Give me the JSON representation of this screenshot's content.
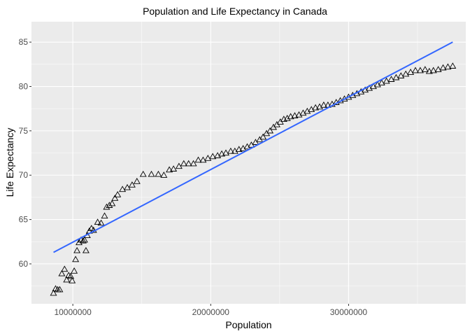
{
  "chart_data": {
    "type": "scatter",
    "title": "Population and Life Expectancy in Canada",
    "xlabel": "Population",
    "ylabel": "Life Expectancy",
    "xlim": [
      7000000,
      38500000
    ],
    "ylim": [
      55.5,
      87.3
    ],
    "x_ticks": [
      10000000,
      20000000,
      30000000
    ],
    "x_tick_labels": [
      "10000000",
      "20000000",
      "30000000"
    ],
    "y_ticks": [
      60,
      65,
      70,
      75,
      80,
      85
    ],
    "y_tick_labels": [
      "60",
      "65",
      "70",
      "75",
      "80",
      "85"
    ],
    "grid": true,
    "marker": "open-triangle",
    "points": [
      [
        8600000,
        56.7
      ],
      [
        8750000,
        57.2
      ],
      [
        8900000,
        57.1
      ],
      [
        9050000,
        57.1
      ],
      [
        9200000,
        58.9
      ],
      [
        9400000,
        59.4
      ],
      [
        9550000,
        58.2
      ],
      [
        9700000,
        58.7
      ],
      [
        9850000,
        58.6
      ],
      [
        9950000,
        58.1
      ],
      [
        10100000,
        59.2
      ],
      [
        10200000,
        60.5
      ],
      [
        10300000,
        61.5
      ],
      [
        10450000,
        62.4
      ],
      [
        10600000,
        62.7
      ],
      [
        10750000,
        62.6
      ],
      [
        10850000,
        62.7
      ],
      [
        10950000,
        61.5
      ],
      [
        11050000,
        63.2
      ],
      [
        11200000,
        63.7
      ],
      [
        11350000,
        64.0
      ],
      [
        11500000,
        63.8
      ],
      [
        11800000,
        64.7
      ],
      [
        12050000,
        64.6
      ],
      [
        12300000,
        65.4
      ],
      [
        12450000,
        66.4
      ],
      [
        12650000,
        66.6
      ],
      [
        12850000,
        66.8
      ],
      [
        13050000,
        67.4
      ],
      [
        13250000,
        67.8
      ],
      [
        13600000,
        68.4
      ],
      [
        13950000,
        68.6
      ],
      [
        14300000,
        68.9
      ],
      [
        14650000,
        69.3
      ],
      [
        15100000,
        70.1
      ],
      [
        15700000,
        70.1
      ],
      [
        16200000,
        70.1
      ],
      [
        16600000,
        70.0
      ],
      [
        17000000,
        70.6
      ],
      [
        17300000,
        70.7
      ],
      [
        17700000,
        71.0
      ],
      [
        18050000,
        71.3
      ],
      [
        18400000,
        71.3
      ],
      [
        18750000,
        71.3
      ],
      [
        19100000,
        71.7
      ],
      [
        19450000,
        71.7
      ],
      [
        19800000,
        71.9
      ],
      [
        20150000,
        72.1
      ],
      [
        20500000,
        72.2
      ],
      [
        20800000,
        72.4
      ],
      [
        21100000,
        72.5
      ],
      [
        21450000,
        72.7
      ],
      [
        21750000,
        72.7
      ],
      [
        22050000,
        72.9
      ],
      [
        22350000,
        73.0
      ],
      [
        22650000,
        73.2
      ],
      [
        22950000,
        73.4
      ],
      [
        23250000,
        73.7
      ],
      [
        23550000,
        74.0
      ],
      [
        23800000,
        74.3
      ],
      [
        24050000,
        74.7
      ],
      [
        24300000,
        75.0
      ],
      [
        24550000,
        75.4
      ],
      [
        24800000,
        75.7
      ],
      [
        25050000,
        76.0
      ],
      [
        25300000,
        76.3
      ],
      [
        25550000,
        76.4
      ],
      [
        25800000,
        76.6
      ],
      [
        26100000,
        76.7
      ],
      [
        26400000,
        76.8
      ],
      [
        26700000,
        77.0
      ],
      [
        27000000,
        77.2
      ],
      [
        27300000,
        77.4
      ],
      [
        27600000,
        77.6
      ],
      [
        27900000,
        77.7
      ],
      [
        28200000,
        77.9
      ],
      [
        28500000,
        77.9
      ],
      [
        28800000,
        78.0
      ],
      [
        29100000,
        78.2
      ],
      [
        29400000,
        78.4
      ],
      [
        29700000,
        78.6
      ],
      [
        30000000,
        78.8
      ],
      [
        30300000,
        79.0
      ],
      [
        30600000,
        79.2
      ],
      [
        30900000,
        79.4
      ],
      [
        31200000,
        79.6
      ],
      [
        31500000,
        79.8
      ],
      [
        31800000,
        80.0
      ],
      [
        32100000,
        80.2
      ],
      [
        32400000,
        80.4
      ],
      [
        32750000,
        80.6
      ],
      [
        33100000,
        80.8
      ],
      [
        33450000,
        81.0
      ],
      [
        33800000,
        81.2
      ],
      [
        34150000,
        81.4
      ],
      [
        34500000,
        81.6
      ],
      [
        34850000,
        81.8
      ],
      [
        35200000,
        81.8
      ],
      [
        35550000,
        81.9
      ],
      [
        35850000,
        81.7
      ],
      [
        36150000,
        81.8
      ],
      [
        36500000,
        81.9
      ],
      [
        36850000,
        82.1
      ],
      [
        37200000,
        82.2
      ],
      [
        37550000,
        82.3
      ]
    ],
    "trend_line": {
      "x": [
        8600000,
        37550000
      ],
      "y": [
        61.3,
        85.0
      ],
      "color": "#3366FF"
    },
    "colors": {
      "panel_bg": "#EBEBEB",
      "grid": "#FFFFFF",
      "marker_stroke": "#000000",
      "axis_text": "#4D4D4D"
    }
  }
}
